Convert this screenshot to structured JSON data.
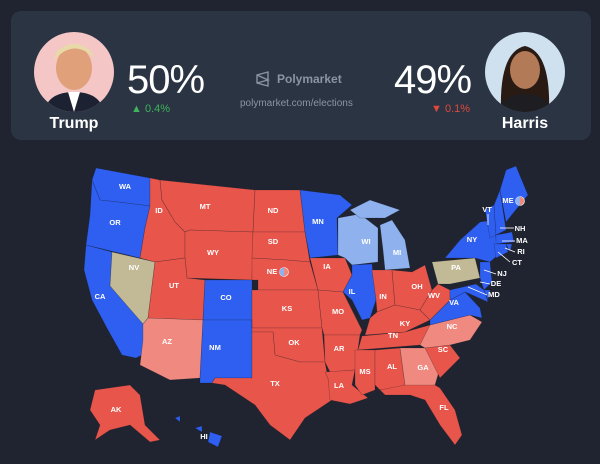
{
  "header": {
    "brand": "Polymarket",
    "url": "polymarket.com/elections",
    "left": {
      "name": "Trump",
      "percent": "50%",
      "change": "0.4%",
      "direction": "up"
    },
    "right": {
      "name": "Harris",
      "percent": "49%",
      "change": "0.1%",
      "direction": "down"
    }
  },
  "colors": {
    "background": "#1f2430",
    "card": "#2a3443",
    "solid_red": "#e8554a",
    "lean_red": "#f08a80",
    "solid_blue": "#2f5ff0",
    "lean_blue": "#8fb2ee",
    "tossup": "#c2b996",
    "up": "#3fb45a",
    "down": "#e0483d"
  },
  "map": {
    "states": [
      {
        "code": "WA",
        "rating": "solid_blue"
      },
      {
        "code": "OR",
        "rating": "solid_blue"
      },
      {
        "code": "CA",
        "rating": "solid_blue"
      },
      {
        "code": "NV",
        "rating": "tossup"
      },
      {
        "code": "ID",
        "rating": "solid_red"
      },
      {
        "code": "MT",
        "rating": "solid_red"
      },
      {
        "code": "WY",
        "rating": "solid_red"
      },
      {
        "code": "UT",
        "rating": "solid_red"
      },
      {
        "code": "CO",
        "rating": "solid_blue"
      },
      {
        "code": "AZ",
        "rating": "lean_red"
      },
      {
        "code": "NM",
        "rating": "solid_blue"
      },
      {
        "code": "ND",
        "rating": "solid_red"
      },
      {
        "code": "SD",
        "rating": "solid_red"
      },
      {
        "code": "NE",
        "rating": "solid_red",
        "split": true
      },
      {
        "code": "KS",
        "rating": "solid_red"
      },
      {
        "code": "OK",
        "rating": "solid_red"
      },
      {
        "code": "TX",
        "rating": "solid_red"
      },
      {
        "code": "MN",
        "rating": "solid_blue"
      },
      {
        "code": "IA",
        "rating": "solid_red"
      },
      {
        "code": "MO",
        "rating": "solid_red"
      },
      {
        "code": "AR",
        "rating": "solid_red"
      },
      {
        "code": "LA",
        "rating": "solid_red"
      },
      {
        "code": "WI",
        "rating": "lean_blue"
      },
      {
        "code": "IL",
        "rating": "solid_blue"
      },
      {
        "code": "MI",
        "rating": "lean_blue"
      },
      {
        "code": "IN",
        "rating": "solid_red"
      },
      {
        "code": "OH",
        "rating": "solid_red"
      },
      {
        "code": "KY",
        "rating": "solid_red"
      },
      {
        "code": "TN",
        "rating": "solid_red"
      },
      {
        "code": "MS",
        "rating": "solid_red"
      },
      {
        "code": "AL",
        "rating": "solid_red"
      },
      {
        "code": "GA",
        "rating": "lean_red"
      },
      {
        "code": "FL",
        "rating": "solid_red"
      },
      {
        "code": "SC",
        "rating": "solid_red"
      },
      {
        "code": "NC",
        "rating": "lean_red"
      },
      {
        "code": "VA",
        "rating": "solid_blue"
      },
      {
        "code": "WV",
        "rating": "solid_red"
      },
      {
        "code": "PA",
        "rating": "tossup"
      },
      {
        "code": "NY",
        "rating": "solid_blue"
      },
      {
        "code": "NJ",
        "rating": "solid_blue"
      },
      {
        "code": "DE",
        "rating": "solid_blue"
      },
      {
        "code": "MD",
        "rating": "solid_blue"
      },
      {
        "code": "VT",
        "rating": "solid_blue"
      },
      {
        "code": "NH",
        "rating": "solid_blue"
      },
      {
        "code": "ME",
        "rating": "solid_blue",
        "split": true
      },
      {
        "code": "MA",
        "rating": "solid_blue"
      },
      {
        "code": "RI",
        "rating": "solid_blue"
      },
      {
        "code": "CT",
        "rating": "solid_blue"
      },
      {
        "code": "AK",
        "rating": "solid_red"
      },
      {
        "code": "HI",
        "rating": "solid_blue"
      }
    ]
  }
}
